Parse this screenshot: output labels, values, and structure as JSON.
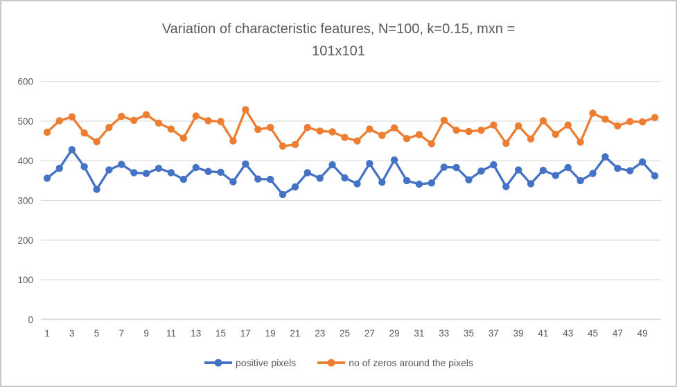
{
  "frame": {
    "background": "#FFFFFF",
    "border_color": "#C9C9C9"
  },
  "title": {
    "line1": "Variation of characteristic features, N=100, k=0.15, mxn =",
    "line2": "101x101",
    "color": "#595959"
  },
  "axes": {
    "y_tick_labels": [
      "600",
      "500",
      "400",
      "300",
      "200",
      "100",
      "0"
    ],
    "x_tick_labels": [
      "1",
      "3",
      "5",
      "7",
      "9",
      "11",
      "13",
      "15",
      "17",
      "19",
      "21",
      "23",
      "25",
      "27",
      "29",
      "31",
      "33",
      "35",
      "37",
      "39",
      "41",
      "43",
      "45",
      "47",
      "49"
    ],
    "label_color": "#595959",
    "gridline_color": "#D9D9D9"
  },
  "legend": {
    "items": [
      {
        "label": "positive pixels",
        "color": "#4472C4"
      },
      {
        "label": "no of zeros around the pixels",
        "color": "#ED7D31"
      }
    ]
  },
  "chart_data": {
    "type": "line",
    "title": "Variation of characteristic features, N=100, k=0.15, mxn = 101x101",
    "x": [
      1,
      2,
      3,
      4,
      5,
      6,
      7,
      8,
      9,
      10,
      11,
      12,
      13,
      14,
      15,
      16,
      17,
      18,
      19,
      20,
      21,
      22,
      23,
      24,
      25,
      26,
      27,
      28,
      29,
      30,
      31,
      32,
      33,
      34,
      35,
      36,
      37,
      38,
      39,
      40,
      41,
      42,
      43,
      44,
      45,
      46,
      47,
      48,
      49,
      50
    ],
    "x_ticks_shown": [
      1,
      3,
      5,
      7,
      9,
      11,
      13,
      15,
      17,
      19,
      21,
      23,
      25,
      27,
      29,
      31,
      33,
      35,
      37,
      39,
      41,
      43,
      45,
      47,
      49
    ],
    "series": [
      {
        "name": "positive pixels",
        "color": "#4472C4",
        "marker": "circle",
        "values": [
          356,
          381,
          428,
          385,
          328,
          377,
          391,
          370,
          368,
          381,
          370,
          353,
          383,
          373,
          371,
          347,
          392,
          354,
          353,
          315,
          334,
          370,
          356,
          390,
          357,
          342,
          393,
          346,
          402,
          350,
          341,
          344,
          384,
          383,
          352,
          374,
          390,
          335,
          377,
          342,
          376,
          363,
          383,
          350,
          368,
          410,
          381,
          375,
          397,
          362
        ]
      },
      {
        "name": "no of zeros around the pixels",
        "color": "#ED7D31",
        "marker": "circle",
        "values": [
          472,
          501,
          511,
          470,
          448,
          484,
          512,
          502,
          516,
          495,
          480,
          457,
          513,
          501,
          499,
          450,
          529,
          479,
          484,
          437,
          441,
          484,
          475,
          473,
          459,
          450,
          480,
          464,
          483,
          456,
          466,
          443,
          502,
          477,
          474,
          477,
          490,
          444,
          488,
          455,
          501,
          467,
          490,
          447,
          520,
          505,
          488,
          499,
          498,
          509
        ]
      }
    ],
    "ylim": [
      0,
      600
    ],
    "y_tick_interval": 100,
    "grid": true,
    "legend_position": "bottom"
  }
}
